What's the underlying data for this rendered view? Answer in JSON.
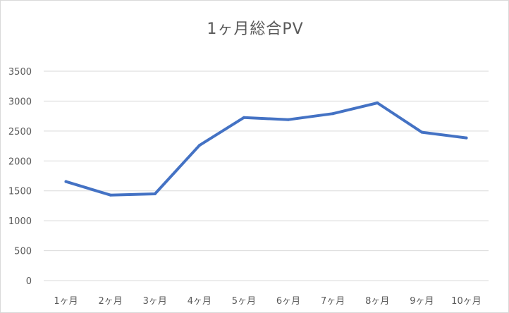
{
  "chart_data": {
    "type": "line",
    "title": "1ヶ月総合PV",
    "xlabel": "",
    "ylabel": "",
    "categories": [
      "1ヶ月",
      "2ヶ月",
      "3ヶ月",
      "4ヶ月",
      "5ヶ月",
      "6ヶ月",
      "7ヶ月",
      "8ヶ月",
      "9ヶ月",
      "10ヶ月"
    ],
    "series": [
      {
        "values": [
          1655,
          1430,
          1450,
          2260,
          2725,
          2690,
          2790,
          2970,
          2480,
          2385
        ],
        "color": "#4472c4"
      }
    ],
    "ylim": [
      0,
      3500
    ],
    "yticks": [
      0,
      500,
      1000,
      1500,
      2000,
      2500,
      3000,
      3500
    ],
    "grid": true,
    "legend": "none"
  }
}
